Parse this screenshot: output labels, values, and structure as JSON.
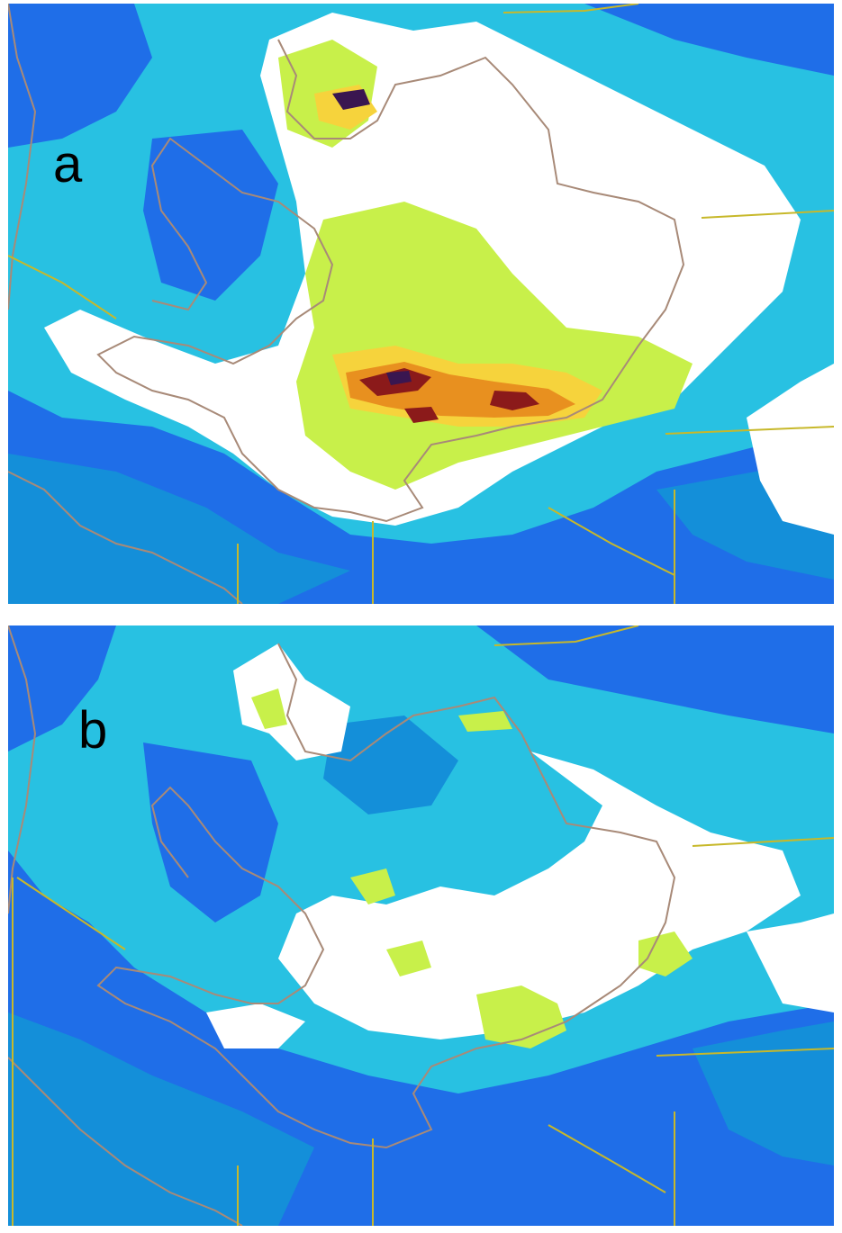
{
  "panels": [
    {
      "label": "a"
    },
    {
      "label": "b"
    }
  ],
  "colors": {
    "sea_light": "#28c1e2",
    "deep_blue": "#1f6ee8",
    "mid_blue": "#148fd9",
    "cloud_white": "#ffffff",
    "light_green": "#c8f04a",
    "yellow": "#f6d33c",
    "orange": "#e8901f",
    "dark_red": "#8b1a1a",
    "purple": "#3a1650",
    "coastline": "#a88a78",
    "border_line": "#c7b82a"
  },
  "legend_colors_order": [
    "deep_blue",
    "mid_blue",
    "sea_light",
    "cloud_white",
    "light_green",
    "yellow",
    "orange",
    "dark_red",
    "purple"
  ]
}
